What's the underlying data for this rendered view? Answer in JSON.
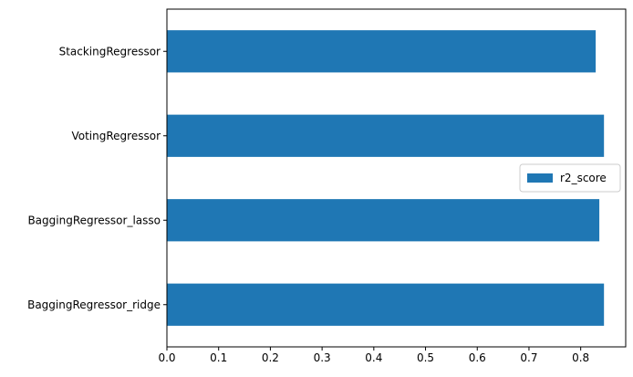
{
  "chart_data": {
    "type": "bar",
    "orientation": "horizontal",
    "categories": [
      "BaggingRegressor_ridge",
      "BaggingRegressor_lasso",
      "VotingRegressor",
      "StackingRegressor"
    ],
    "series": [
      {
        "name": "r2_score",
        "values": [
          0.845,
          0.836,
          0.845,
          0.829
        ]
      }
    ],
    "xlim": [
      0,
      0.887
    ],
    "xticks": [
      0.0,
      0.1,
      0.2,
      0.3,
      0.4,
      0.5,
      0.6,
      0.7,
      0.8
    ],
    "xtick_labels": [
      "0.0",
      "0.1",
      "0.2",
      "0.3",
      "0.4",
      "0.5",
      "0.6",
      "0.7",
      "0.8"
    ],
    "title": "",
    "xlabel": "",
    "ylabel": "",
    "grid": false,
    "legend": {
      "position": "center-right"
    },
    "colors": {
      "bar": "#1f77b4"
    }
  }
}
